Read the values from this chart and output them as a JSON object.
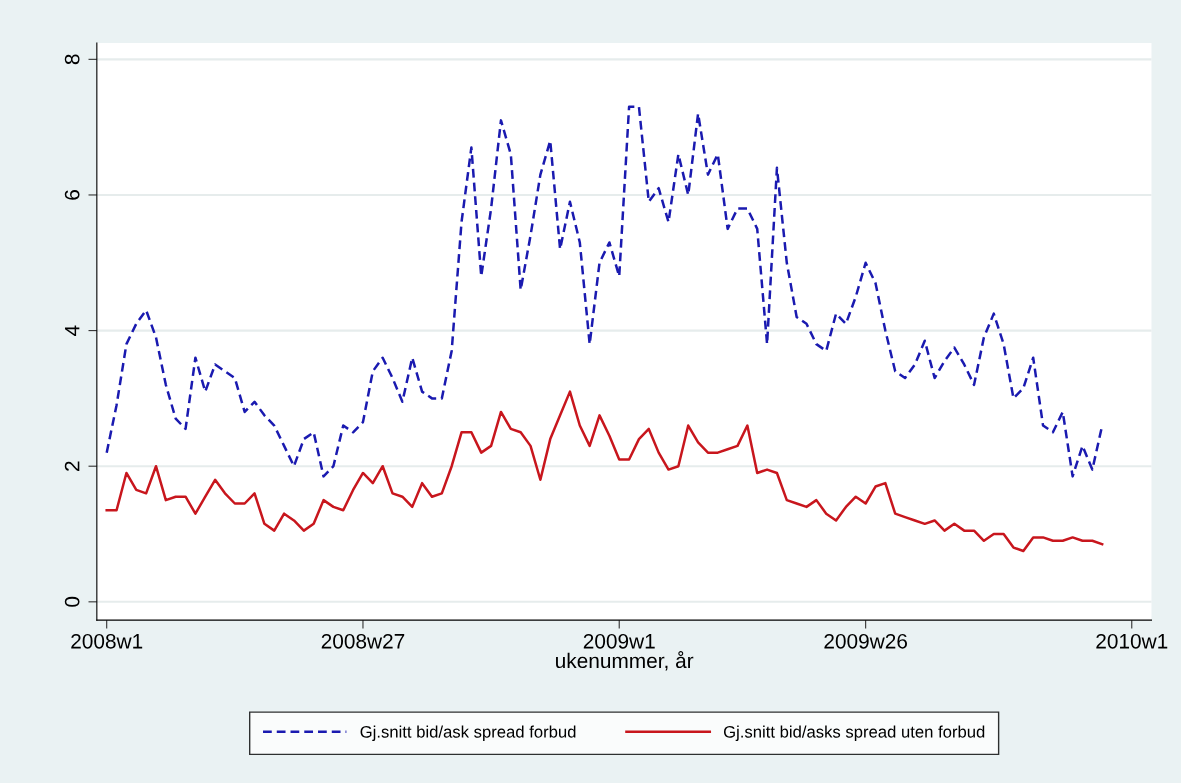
{
  "chart_data": {
    "type": "line",
    "xlabel": "ukenummer, år",
    "categories": [
      "2008w1",
      null,
      null,
      null,
      null,
      null,
      null,
      null,
      null,
      null,
      null,
      null,
      null,
      null,
      null,
      null,
      null,
      null,
      null,
      null,
      null,
      null,
      null,
      null,
      null,
      null,
      "2008w27",
      null,
      null,
      null,
      null,
      null,
      null,
      null,
      null,
      null,
      null,
      null,
      null,
      null,
      null,
      null,
      null,
      null,
      null,
      null,
      null,
      null,
      null,
      null,
      null,
      null,
      "2009w1",
      null,
      null,
      null,
      null,
      null,
      null,
      null,
      null,
      null,
      null,
      null,
      null,
      null,
      null,
      null,
      null,
      null,
      null,
      null,
      null,
      null,
      null,
      null,
      null,
      "2009w26",
      null,
      null,
      null,
      null,
      null,
      null,
      null,
      null,
      null,
      null,
      null,
      null,
      null,
      null,
      null,
      null,
      null,
      null,
      null,
      null,
      null,
      null,
      null,
      null,
      null,
      null,
      "2010w1"
    ],
    "series": [
      {
        "name": "Gj.snitt bid/ask spread forbud",
        "color": "#1a1ab0",
        "line_style": "dashed",
        "values": [
          2.2,
          2.9,
          3.8,
          4.1,
          4.3,
          3.9,
          3.2,
          2.7,
          2.55,
          3.6,
          3.1,
          3.5,
          3.4,
          3.3,
          2.8,
          2.95,
          2.75,
          2.6,
          2.3,
          2.0,
          2.4,
          2.5,
          1.85,
          2.0,
          2.6,
          2.5,
          2.65,
          3.4,
          3.6,
          3.3,
          2.95,
          3.6,
          3.1,
          3.0,
          3.0,
          3.7,
          5.6,
          6.7,
          4.8,
          5.8,
          7.1,
          6.6,
          4.6,
          5.4,
          6.3,
          6.8,
          5.2,
          5.9,
          5.3,
          3.8,
          5.0,
          5.3,
          4.8,
          7.3,
          7.3,
          5.9,
          6.1,
          5.6,
          6.6,
          6.0,
          7.2,
          6.3,
          6.6,
          5.5,
          5.8,
          5.8,
          5.5,
          3.8,
          6.4,
          5.0,
          4.2,
          4.1,
          3.8,
          3.7,
          4.25,
          4.1,
          4.5,
          5.0,
          4.7,
          4.0,
          3.4,
          3.3,
          3.5,
          3.85,
          3.3,
          3.55,
          3.75,
          3.5,
          3.2,
          3.9,
          4.25,
          3.8,
          3.0,
          3.15,
          3.6,
          2.6,
          2.5,
          2.8,
          1.85,
          2.3,
          1.95,
          2.6,
          null,
          null,
          null
        ]
      },
      {
        "name": "Gj.snitt bid/asks spread uten forbud",
        "color": "#c8161d",
        "line_style": "solid",
        "values": [
          1.35,
          1.35,
          1.9,
          1.65,
          1.6,
          2.0,
          1.5,
          1.55,
          1.55,
          1.3,
          1.55,
          1.8,
          1.6,
          1.45,
          1.45,
          1.6,
          1.15,
          1.05,
          1.3,
          1.2,
          1.05,
          1.15,
          1.5,
          1.4,
          1.35,
          1.65,
          1.9,
          1.75,
          2.0,
          1.6,
          1.55,
          1.4,
          1.75,
          1.55,
          1.6,
          2.0,
          2.5,
          2.5,
          2.2,
          2.3,
          2.8,
          2.55,
          2.5,
          2.3,
          1.8,
          2.4,
          2.75,
          3.1,
          2.6,
          2.3,
          2.75,
          2.45,
          2.1,
          2.1,
          2.4,
          2.55,
          2.2,
          1.95,
          2.0,
          2.6,
          2.35,
          2.2,
          2.2,
          2.25,
          2.3,
          2.6,
          1.9,
          1.95,
          1.9,
          1.5,
          1.45,
          1.4,
          1.5,
          1.3,
          1.2,
          1.4,
          1.55,
          1.45,
          1.7,
          1.75,
          1.3,
          1.25,
          1.2,
          1.15,
          1.2,
          1.05,
          1.15,
          1.05,
          1.05,
          0.9,
          1.0,
          1.0,
          0.8,
          0.75,
          0.95,
          0.95,
          0.9,
          0.9,
          0.95,
          0.9,
          0.9,
          0.85,
          null,
          null,
          null
        ]
      }
    ],
    "ylim": [
      -0.27,
      8.24
    ],
    "yticks": [
      0,
      2,
      4,
      6,
      8
    ],
    "grid": "y",
    "legend": "bottom",
    "marker": "none"
  }
}
